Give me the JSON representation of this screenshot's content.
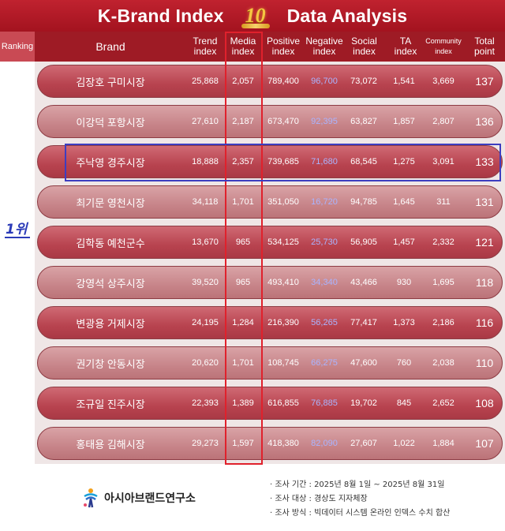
{
  "title": {
    "left": "K-Brand Index",
    "badge": "10",
    "right": "Data Analysis"
  },
  "headers": {
    "ranking": "Ranking",
    "brand": "Brand",
    "trend": [
      "Trend",
      "index"
    ],
    "media": [
      "Media",
      "index"
    ],
    "positive": [
      "Positive",
      "index"
    ],
    "negative": [
      "Negative",
      "index"
    ],
    "social": [
      "Social",
      "index"
    ],
    "ta": [
      "TA",
      "index"
    ],
    "community": [
      "Community",
      "index"
    ],
    "total": [
      "Total",
      "point"
    ]
  },
  "highlight_label": "1위",
  "colors": {
    "title_bg": "#b01a26",
    "header_bg": "#9e1b25",
    "row_dark": "#b8434f",
    "row_light": "#c78489",
    "negative_text": "#a9b4ff",
    "media_box": "#e0212c",
    "highlight_box": "#3d3dc0"
  },
  "chart_data": {
    "type": "table",
    "columns": [
      "Brand",
      "Trend index",
      "Media index",
      "Positive index",
      "Negative index",
      "Social index",
      "TA index",
      "Community index",
      "Total point"
    ],
    "rows": [
      {
        "brand": "김장호 구미시장",
        "trend": "25,868",
        "media": "2,057",
        "positive": "789,400",
        "negative": "96,700",
        "social": "73,072",
        "ta": "1,541",
        "community": "3,669",
        "total": "137"
      },
      {
        "brand": "이강덕 포항시장",
        "trend": "27,610",
        "media": "2,187",
        "positive": "673,470",
        "negative": "92,395",
        "social": "63,827",
        "ta": "1,857",
        "community": "2,807",
        "total": "136"
      },
      {
        "brand": "주낙영 경주시장",
        "trend": "18,888",
        "media": "2,357",
        "positive": "739,685",
        "negative": "71,680",
        "social": "68,545",
        "ta": "1,275",
        "community": "3,091",
        "total": "133"
      },
      {
        "brand": "최기문 영천시장",
        "trend": "34,118",
        "media": "1,701",
        "positive": "351,050",
        "negative": "16,720",
        "social": "94,785",
        "ta": "1,645",
        "community": "311",
        "total": "131"
      },
      {
        "brand": "김학동 예천군수",
        "trend": "13,670",
        "media": "965",
        "positive": "534,125",
        "negative": "25,730",
        "social": "56,905",
        "ta": "1,457",
        "community": "2,332",
        "total": "121"
      },
      {
        "brand": "강영석 상주시장",
        "trend": "39,520",
        "media": "965",
        "positive": "493,410",
        "negative": "34,340",
        "social": "43,466",
        "ta": "930",
        "community": "1,695",
        "total": "118"
      },
      {
        "brand": "변광용 거제시장",
        "trend": "24,195",
        "media": "1,284",
        "positive": "216,390",
        "negative": "56,265",
        "social": "77,417",
        "ta": "1,373",
        "community": "2,186",
        "total": "116"
      },
      {
        "brand": "권기창 안동시장",
        "trend": "20,620",
        "media": "1,701",
        "positive": "108,745",
        "negative": "66,275",
        "social": "47,600",
        "ta": "760",
        "community": "2,038",
        "total": "110"
      },
      {
        "brand": "조규일 진주시장",
        "trend": "22,393",
        "media": "1,389",
        "positive": "616,855",
        "negative": "76,885",
        "social": "19,702",
        "ta": "845",
        "community": "2,652",
        "total": "108"
      },
      {
        "brand": "홍태용 김해시장",
        "trend": "29,273",
        "media": "1,597",
        "positive": "418,380",
        "negative": "82,090",
        "social": "27,607",
        "ta": "1,022",
        "community": "1,884",
        "total": "107"
      }
    ]
  },
  "footer": {
    "org_name": "아시아브랜드연구소",
    "notes": [
      "· 조사 기간 : 2025년 8월 1일 ~ 2025년 8월 31일",
      "· 조사 대상 : 경상도 지자체장",
      "· 조사 방식 : 빅데이터 시스템 온라인 인덱스 수치 합산"
    ]
  }
}
